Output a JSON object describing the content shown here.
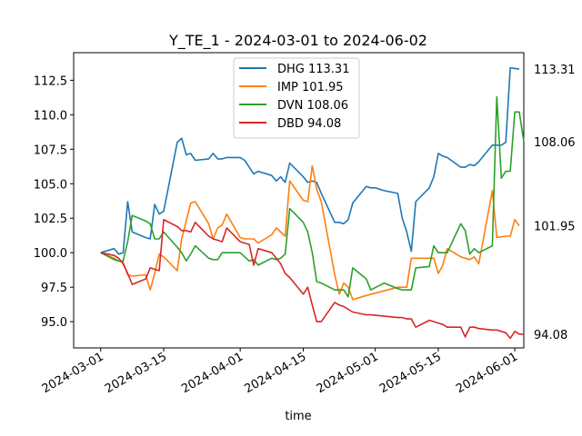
{
  "chart_data": {
    "type": "line",
    "title": "Y_TE_1 - 2024-03-01 to 2024-06-02",
    "xlabel": "time",
    "ylabel": "",
    "xlim": [
      "2024-02-24",
      "2024-06-03"
    ],
    "ylim": [
      93.1,
      114.5
    ],
    "x_ticks": [
      "2024-03-01",
      "2024-03-15",
      "2024-04-01",
      "2024-04-15",
      "2024-05-01",
      "2024-05-15",
      "2024-06-01"
    ],
    "y_ticks": [
      95.0,
      97.5,
      100.0,
      102.5,
      105.0,
      107.5,
      110.0,
      112.5
    ],
    "y_tick_labels": [
      "95.0",
      "97.5",
      "100.0",
      "102.5",
      "105.0",
      "107.5",
      "110.0",
      "112.5"
    ],
    "legend_position": "top-center",
    "grid": false,
    "series": [
      {
        "name": "DHG 113.31",
        "end_label": "113.31",
        "color": "#1f77b4",
        "points": [
          [
            "2024-03-01",
            100.0
          ],
          [
            "2024-03-04",
            100.3
          ],
          [
            "2024-03-05",
            99.9
          ],
          [
            "2024-03-06",
            100.0
          ],
          [
            "2024-03-07",
            103.7
          ],
          [
            "2024-03-08",
            101.5
          ],
          [
            "2024-03-11",
            101.1
          ],
          [
            "2024-03-12",
            101.0
          ],
          [
            "2024-03-13",
            103.5
          ],
          [
            "2024-03-14",
            102.8
          ],
          [
            "2024-03-15",
            103.0
          ],
          [
            "2024-03-18",
            108.0
          ],
          [
            "2024-03-19",
            108.3
          ],
          [
            "2024-03-20",
            107.1
          ],
          [
            "2024-03-21",
            107.2
          ],
          [
            "2024-03-22",
            106.7
          ],
          [
            "2024-03-25",
            106.8
          ],
          [
            "2024-03-26",
            107.2
          ],
          [
            "2024-03-27",
            106.8
          ],
          [
            "2024-03-28",
            106.8
          ],
          [
            "2024-03-29",
            106.9
          ],
          [
            "2024-04-01",
            106.9
          ],
          [
            "2024-04-02",
            106.7
          ],
          [
            "2024-04-03",
            106.2
          ],
          [
            "2024-04-04",
            105.7
          ],
          [
            "2024-04-05",
            105.9
          ],
          [
            "2024-04-08",
            105.6
          ],
          [
            "2024-04-09",
            105.2
          ],
          [
            "2024-04-10",
            105.5
          ],
          [
            "2024-04-11",
            105.1
          ],
          [
            "2024-04-12",
            106.5
          ],
          [
            "2024-04-15",
            105.5
          ],
          [
            "2024-04-16",
            105.1
          ],
          [
            "2024-04-17",
            105.2
          ],
          [
            "2024-04-18",
            105.1
          ],
          [
            "2024-04-19",
            104.3
          ],
          [
            "2024-04-22",
            102.2
          ],
          [
            "2024-04-23",
            102.2
          ],
          [
            "2024-04-24",
            102.1
          ],
          [
            "2024-04-25",
            102.4
          ],
          [
            "2024-04-26",
            103.6
          ],
          [
            "2024-04-29",
            104.8
          ],
          [
            "2024-04-30",
            104.7
          ],
          [
            "2024-05-01",
            104.7
          ],
          [
            "2024-05-02",
            104.6
          ],
          [
            "2024-05-03",
            104.5
          ],
          [
            "2024-05-06",
            104.3
          ],
          [
            "2024-05-07",
            102.5
          ],
          [
            "2024-05-08",
            101.5
          ],
          [
            "2024-05-09",
            100.1
          ],
          [
            "2024-05-10",
            103.7
          ],
          [
            "2024-05-13",
            104.7
          ],
          [
            "2024-05-14",
            105.5
          ],
          [
            "2024-05-15",
            107.2
          ],
          [
            "2024-05-16",
            107.0
          ],
          [
            "2024-05-17",
            106.9
          ],
          [
            "2024-05-20",
            106.2
          ],
          [
            "2024-05-21",
            106.2
          ],
          [
            "2024-05-22",
            106.4
          ],
          [
            "2024-05-23",
            106.3
          ],
          [
            "2024-05-24",
            106.6
          ],
          [
            "2024-05-27",
            107.8
          ],
          [
            "2024-05-28",
            107.8
          ],
          [
            "2024-05-29",
            107.8
          ],
          [
            "2024-05-30",
            108.0
          ],
          [
            "2024-05-31",
            113.4
          ],
          [
            "2024-06-02",
            113.31
          ]
        ]
      },
      {
        "name": "IMP 101.95",
        "end_label": "101.95",
        "color": "#ff7f0e",
        "points": [
          [
            "2024-03-01",
            100.0
          ],
          [
            "2024-03-04",
            99.6
          ],
          [
            "2024-03-05",
            99.4
          ],
          [
            "2024-03-06",
            99.3
          ],
          [
            "2024-03-07",
            98.4
          ],
          [
            "2024-03-08",
            98.3
          ],
          [
            "2024-03-11",
            98.4
          ],
          [
            "2024-03-12",
            97.3
          ],
          [
            "2024-03-13",
            98.5
          ],
          [
            "2024-03-14",
            99.9
          ],
          [
            "2024-03-15",
            99.7
          ],
          [
            "2024-03-18",
            98.7
          ],
          [
            "2024-03-19",
            101.0
          ],
          [
            "2024-03-20",
            102.3
          ],
          [
            "2024-03-21",
            103.6
          ],
          [
            "2024-03-22",
            103.7
          ],
          [
            "2024-03-25",
            102.1
          ],
          [
            "2024-03-26",
            101.0
          ],
          [
            "2024-03-27",
            101.8
          ],
          [
            "2024-03-28",
            102.0
          ],
          [
            "2024-03-29",
            102.8
          ],
          [
            "2024-04-01",
            101.1
          ],
          [
            "2024-04-02",
            101.0
          ],
          [
            "2024-04-03",
            101.0
          ],
          [
            "2024-04-04",
            101.0
          ],
          [
            "2024-04-05",
            100.7
          ],
          [
            "2024-04-08",
            101.3
          ],
          [
            "2024-04-09",
            101.8
          ],
          [
            "2024-04-10",
            101.5
          ],
          [
            "2024-04-11",
            101.2
          ],
          [
            "2024-04-12",
            105.2
          ],
          [
            "2024-04-15",
            103.8
          ],
          [
            "2024-04-16",
            103.7
          ],
          [
            "2024-04-17",
            106.3
          ],
          [
            "2024-04-18",
            104.6
          ],
          [
            "2024-04-19",
            103.7
          ],
          [
            "2024-04-22",
            98.4
          ],
          [
            "2024-04-23",
            97.0
          ],
          [
            "2024-04-24",
            97.8
          ],
          [
            "2024-04-25",
            97.5
          ],
          [
            "2024-04-26",
            96.6
          ],
          [
            "2024-04-29",
            96.9
          ],
          [
            "2024-05-06",
            97.5
          ],
          [
            "2024-05-08",
            97.5
          ],
          [
            "2024-05-09",
            99.6
          ],
          [
            "2024-05-10",
            99.6
          ],
          [
            "2024-05-13",
            99.6
          ],
          [
            "2024-05-14",
            99.6
          ],
          [
            "2024-05-15",
            98.5
          ],
          [
            "2024-05-16",
            99.1
          ],
          [
            "2024-05-17",
            100.3
          ],
          [
            "2024-05-20",
            99.7
          ],
          [
            "2024-05-21",
            99.6
          ],
          [
            "2024-05-22",
            99.5
          ],
          [
            "2024-05-23",
            99.7
          ],
          [
            "2024-05-24",
            99.2
          ],
          [
            "2024-05-27",
            104.5
          ],
          [
            "2024-05-28",
            101.1
          ],
          [
            "2024-05-30",
            101.2
          ],
          [
            "2024-05-31",
            101.2
          ],
          [
            "2024-06-01",
            102.4
          ],
          [
            "2024-06-02",
            101.95
          ]
        ]
      },
      {
        "name": "DVN 108.06",
        "end_label": "108.06",
        "color": "#2ca02c",
        "points": [
          [
            "2024-03-01",
            100.0
          ],
          [
            "2024-03-04",
            99.5
          ],
          [
            "2024-03-05",
            99.4
          ],
          [
            "2024-03-06",
            99.4
          ],
          [
            "2024-03-07",
            100.8
          ],
          [
            "2024-03-08",
            102.7
          ],
          [
            "2024-03-11",
            102.3
          ],
          [
            "2024-03-12",
            102.1
          ],
          [
            "2024-03-13",
            101.0
          ],
          [
            "2024-03-14",
            101.0
          ],
          [
            "2024-03-15",
            101.5
          ],
          [
            "2024-03-18",
            100.4
          ],
          [
            "2024-03-19",
            100.0
          ],
          [
            "2024-03-20",
            99.4
          ],
          [
            "2024-03-21",
            99.9
          ],
          [
            "2024-03-22",
            100.5
          ],
          [
            "2024-03-25",
            99.6
          ],
          [
            "2024-03-26",
            99.5
          ],
          [
            "2024-03-27",
            99.5
          ],
          [
            "2024-03-28",
            100.0
          ],
          [
            "2024-03-29",
            100.0
          ],
          [
            "2024-04-01",
            100.0
          ],
          [
            "2024-04-02",
            99.7
          ],
          [
            "2024-04-03",
            99.4
          ],
          [
            "2024-04-04",
            99.5
          ],
          [
            "2024-04-05",
            99.1
          ],
          [
            "2024-04-08",
            99.6
          ],
          [
            "2024-04-09",
            99.5
          ],
          [
            "2024-04-10",
            99.6
          ],
          [
            "2024-04-11",
            99.9
          ],
          [
            "2024-04-12",
            103.2
          ],
          [
            "2024-04-15",
            102.2
          ],
          [
            "2024-04-16",
            101.5
          ],
          [
            "2024-04-17",
            100.0
          ],
          [
            "2024-04-18",
            97.9
          ],
          [
            "2024-04-19",
            97.8
          ],
          [
            "2024-04-22",
            97.3
          ],
          [
            "2024-04-23",
            97.3
          ],
          [
            "2024-04-24",
            97.3
          ],
          [
            "2024-04-25",
            96.8
          ],
          [
            "2024-04-26",
            98.9
          ],
          [
            "2024-04-29",
            98.1
          ],
          [
            "2024-04-30",
            97.3
          ],
          [
            "2024-05-03",
            97.8
          ],
          [
            "2024-05-06",
            97.4
          ],
          [
            "2024-05-07",
            97.3
          ],
          [
            "2024-05-08",
            97.3
          ],
          [
            "2024-05-09",
            97.3
          ],
          [
            "2024-05-10",
            98.9
          ],
          [
            "2024-05-13",
            99.0
          ],
          [
            "2024-05-14",
            100.5
          ],
          [
            "2024-05-15",
            100.0
          ],
          [
            "2024-05-16",
            100.0
          ],
          [
            "2024-05-17",
            100.0
          ],
          [
            "2024-05-20",
            102.1
          ],
          [
            "2024-05-21",
            101.6
          ],
          [
            "2024-05-22",
            99.9
          ],
          [
            "2024-05-23",
            100.3
          ],
          [
            "2024-05-24",
            100.0
          ],
          [
            "2024-05-27",
            100.5
          ],
          [
            "2024-05-28",
            111.3
          ],
          [
            "2024-05-29",
            105.4
          ],
          [
            "2024-05-30",
            105.9
          ],
          [
            "2024-05-31",
            105.9
          ],
          [
            "2024-06-01",
            110.2
          ],
          [
            "2024-06-02",
            110.2
          ],
          [
            "2024-06-03",
            108.06
          ]
        ]
      },
      {
        "name": "DBD 94.08",
        "end_label": "94.08",
        "color": "#d62728",
        "points": [
          [
            "2024-03-01",
            100.0
          ],
          [
            "2024-03-04",
            99.8
          ],
          [
            "2024-03-05",
            99.6
          ],
          [
            "2024-03-06",
            99.2
          ],
          [
            "2024-03-07",
            98.5
          ],
          [
            "2024-03-08",
            97.7
          ],
          [
            "2024-03-11",
            98.1
          ],
          [
            "2024-03-12",
            98.9
          ],
          [
            "2024-03-13",
            98.8
          ],
          [
            "2024-03-14",
            98.7
          ],
          [
            "2024-03-15",
            102.4
          ],
          [
            "2024-03-18",
            101.9
          ],
          [
            "2024-03-19",
            101.6
          ],
          [
            "2024-03-20",
            101.6
          ],
          [
            "2024-03-21",
            101.5
          ],
          [
            "2024-03-22",
            102.2
          ],
          [
            "2024-03-25",
            101.2
          ],
          [
            "2024-03-26",
            101.0
          ],
          [
            "2024-03-27",
            100.9
          ],
          [
            "2024-03-28",
            100.8
          ],
          [
            "2024-03-29",
            101.8
          ],
          [
            "2024-04-01",
            100.8
          ],
          [
            "2024-04-02",
            100.7
          ],
          [
            "2024-04-03",
            100.6
          ],
          [
            "2024-04-04",
            99.1
          ],
          [
            "2024-04-05",
            100.3
          ],
          [
            "2024-04-08",
            100.0
          ],
          [
            "2024-04-09",
            99.6
          ],
          [
            "2024-04-10",
            99.2
          ],
          [
            "2024-04-11",
            98.5
          ],
          [
            "2024-04-12",
            98.2
          ],
          [
            "2024-04-15",
            97.0
          ],
          [
            "2024-04-16",
            97.5
          ],
          [
            "2024-04-17",
            96.2
          ],
          [
            "2024-04-18",
            95.0
          ],
          [
            "2024-04-19",
            95.0
          ],
          [
            "2024-04-22",
            96.4
          ],
          [
            "2024-04-23",
            96.2
          ],
          [
            "2024-04-24",
            96.1
          ],
          [
            "2024-04-25",
            95.9
          ],
          [
            "2024-04-26",
            95.7
          ],
          [
            "2024-04-29",
            95.5
          ],
          [
            "2024-04-30",
            95.5
          ],
          [
            "2024-05-03",
            95.4
          ],
          [
            "2024-05-06",
            95.3
          ],
          [
            "2024-05-07",
            95.3
          ],
          [
            "2024-05-08",
            95.2
          ],
          [
            "2024-05-09",
            95.2
          ],
          [
            "2024-05-10",
            94.6
          ],
          [
            "2024-05-13",
            95.1
          ],
          [
            "2024-05-14",
            95.0
          ],
          [
            "2024-05-15",
            94.9
          ],
          [
            "2024-05-16",
            94.8
          ],
          [
            "2024-05-17",
            94.6
          ],
          [
            "2024-05-20",
            94.6
          ],
          [
            "2024-05-21",
            93.9
          ],
          [
            "2024-05-22",
            94.6
          ],
          [
            "2024-05-23",
            94.6
          ],
          [
            "2024-05-24",
            94.5
          ],
          [
            "2024-05-27",
            94.4
          ],
          [
            "2024-05-28",
            94.4
          ],
          [
            "2024-05-29",
            94.3
          ],
          [
            "2024-05-30",
            94.2
          ],
          [
            "2024-05-31",
            93.8
          ],
          [
            "2024-06-01",
            94.3
          ],
          [
            "2024-06-02",
            94.1
          ],
          [
            "2024-06-03",
            94.08
          ]
        ]
      }
    ]
  }
}
